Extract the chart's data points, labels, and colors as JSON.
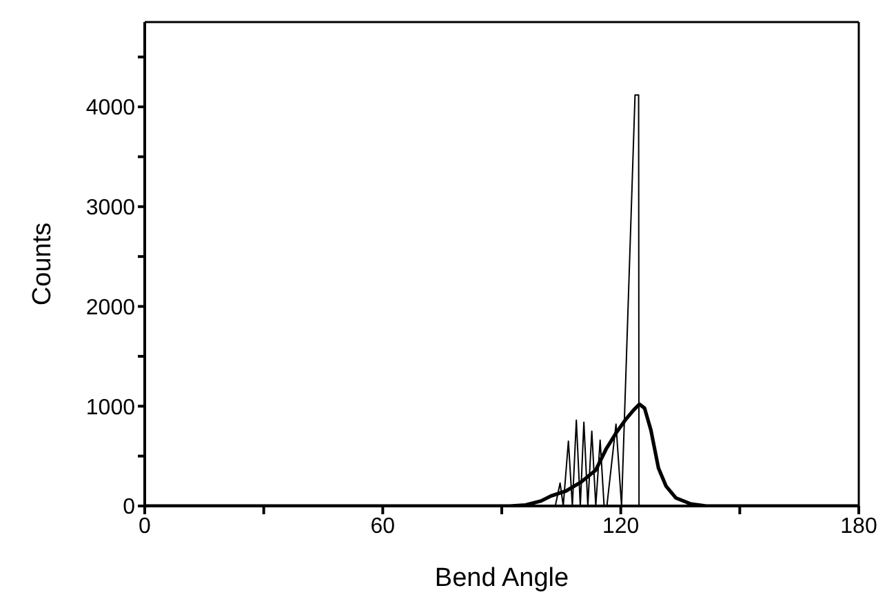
{
  "chart_data": {
    "type": "line",
    "xlabel": "Bend Angle",
    "ylabel": "Counts",
    "xlim": [
      0,
      180
    ],
    "xticks": [
      0,
      {
        "value": 30,
        "label": null
      },
      60,
      {
        "value": 90,
        "label": null
      },
      120,
      {
        "value": 150,
        "label": null
      },
      180
    ],
    "ylim": [
      0,
      4850
    ],
    "yticks": [
      0,
      {
        "value": 500,
        "label": null
      },
      1000,
      {
        "value": 1500,
        "label": null
      },
      2000,
      {
        "value": 2500,
        "label": null
      },
      3000,
      {
        "value": 3500,
        "label": null
      },
      4000,
      {
        "value": 4500,
        "label": null
      }
    ],
    "marker": "none",
    "line_style": "solid",
    "series": [
      {
        "color": "#000000",
        "x": [
          0,
          103.5,
          104.7,
          105.5,
          106.8,
          107.8,
          108.8,
          109.8,
          110.7,
          111.7,
          112.7,
          113.7,
          114.8,
          115.8,
          116.5,
          118.8,
          120.2,
          123.6,
          124.5,
          124.6,
          180
        ],
        "values": [
          0,
          0,
          230,
          0,
          650,
          0,
          860,
          0,
          840,
          0,
          750,
          0,
          660,
          0,
          0,
          820,
          0,
          4120,
          4120,
          0,
          0
        ]
      },
      {
        "color": "#000000",
        "x": [
          0,
          92,
          96,
          99.9,
          102.4,
          106.2,
          110,
          113.7,
          116.3,
          118.8,
          121.3,
          123.2,
          124.7,
          126,
          127.6,
          129.5,
          131.4,
          133.9,
          137.7,
          141.5,
          180
        ],
        "values": [
          0,
          0,
          10,
          50,
          100,
          150,
          240,
          360,
          570,
          730,
          870,
          960,
          1020,
          980,
          760,
          380,
          200,
          80,
          20,
          0,
          0
        ]
      }
    ]
  }
}
